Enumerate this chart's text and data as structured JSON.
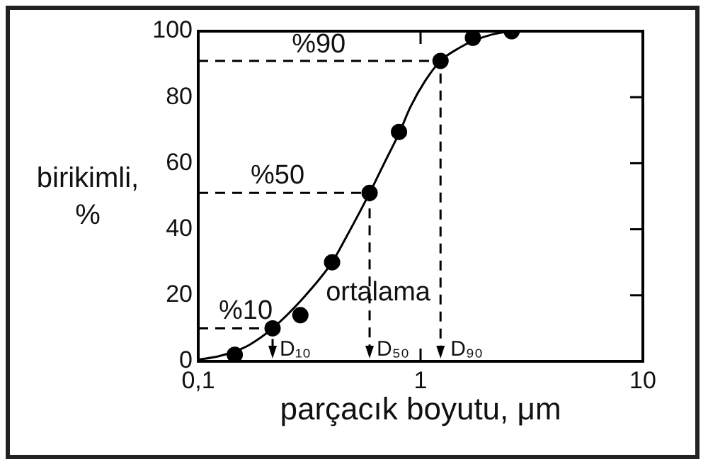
{
  "chart_data": {
    "type": "scatter",
    "xlabel": "parçacık boyutu, μm",
    "ylabel": "birikimli,\n%",
    "log": "x",
    "grid": false,
    "legend": false,
    "xlim": [
      0.1,
      10
    ],
    "xticks": [
      {
        "value": 0.1,
        "label": "0,1"
      },
      1,
      10
    ],
    "ylim": [
      0,
      100
    ],
    "yticks": [
      0,
      20,
      40,
      60,
      80,
      100
    ],
    "series": [
      {
        "type": "scatter",
        "marker": "circle",
        "color": "#000000",
        "x": [
          0.146,
          0.216,
          0.288,
          0.4,
          0.59,
          0.8,
          1.23,
          1.72,
          2.57
        ],
        "values": [
          2,
          10,
          14,
          30,
          51,
          69.5,
          91,
          98,
          100
        ]
      },
      {
        "type": "line",
        "marker": "none",
        "line_style": "solid",
        "color": "#000000",
        "x": [
          0.1,
          0.123,
          0.146,
          0.17,
          0.216,
          0.295,
          0.4,
          0.458,
          0.59,
          0.71,
          0.8,
          0.9,
          1.05,
          1.23,
          1.5,
          1.72,
          2.1,
          2.57
        ],
        "values": [
          0.5,
          1.5,
          3,
          5,
          10,
          19,
          30,
          37,
          51,
          62,
          69,
          77,
          85,
          91,
          95,
          97,
          99,
          100
        ]
      }
    ],
    "annotations": [
      "%90",
      "%50",
      "%10",
      "ortalama",
      "D₁₀",
      "D₅₀",
      "D₉₀"
    ]
  }
}
